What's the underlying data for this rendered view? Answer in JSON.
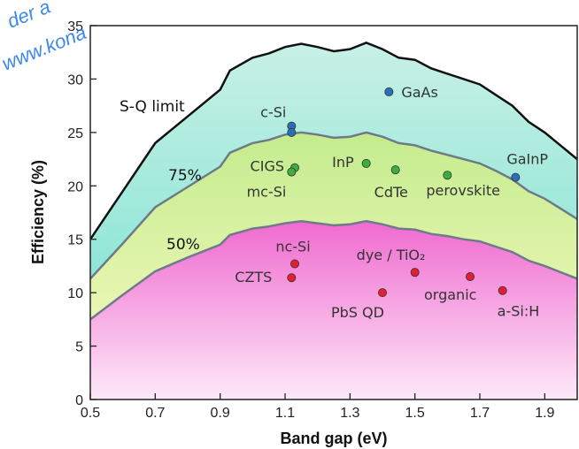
{
  "watermark": {
    "line1": "der a",
    "line2": "www.kona"
  },
  "chart_data": {
    "type": "area",
    "title": "",
    "xlabel": "Band gap (eV)",
    "ylabel": "Efficiency (%)",
    "xlim": [
      0.5,
      2.0
    ],
    "ylim": [
      0,
      35
    ],
    "xticks": [
      "0.5",
      "0.7",
      "0.9",
      "1.1",
      "1.3",
      "1.5",
      "1.7",
      "1.9"
    ],
    "yticks": [
      "0",
      "5",
      "10",
      "15",
      "20",
      "25",
      "30",
      "35"
    ],
    "grid": false,
    "x": [
      0.5,
      0.6,
      0.7,
      0.8,
      0.9,
      0.93,
      1.0,
      1.05,
      1.1,
      1.15,
      1.2,
      1.25,
      1.3,
      1.35,
      1.4,
      1.45,
      1.5,
      1.55,
      1.6,
      1.65,
      1.7,
      1.75,
      1.8,
      1.85,
      1.9,
      2.0
    ],
    "series": [
      {
        "name": "S-Q limit",
        "values": [
          15.0,
          19.5,
          24.0,
          26.5,
          29.0,
          30.8,
          32.0,
          32.4,
          33.0,
          33.3,
          33.0,
          32.6,
          32.8,
          33.4,
          32.8,
          32.0,
          31.8,
          31.0,
          30.5,
          30.0,
          29.5,
          28.5,
          27.5,
          26.0,
          25.0,
          22.5
        ]
      },
      {
        "name": "75%",
        "values": [
          11.3,
          14.6,
          18.0,
          19.9,
          21.8,
          23.1,
          24.0,
          24.3,
          24.8,
          25.0,
          24.8,
          24.5,
          24.6,
          25.0,
          24.6,
          24.0,
          23.8,
          23.3,
          22.9,
          22.5,
          22.1,
          21.4,
          20.6,
          19.5,
          18.8,
          16.9
        ]
      },
      {
        "name": "50%",
        "values": [
          7.5,
          9.8,
          12.0,
          13.3,
          14.5,
          15.4,
          16.0,
          16.2,
          16.5,
          16.7,
          16.5,
          16.3,
          16.4,
          16.7,
          16.4,
          16.0,
          15.9,
          15.5,
          15.3,
          15.0,
          14.8,
          14.3,
          13.8,
          13.0,
          12.5,
          11.3
        ]
      }
    ],
    "points": [
      {
        "label": "GaAs",
        "x": 1.42,
        "y": 28.8,
        "color": "#2a6fb8"
      },
      {
        "label": "c-Si",
        "x": 1.12,
        "y": 25.6,
        "color": "#2a6fb8"
      },
      {
        "label": "",
        "x": 1.12,
        "y": 25.0,
        "color": "#2a6fb8"
      },
      {
        "label": "GaInP",
        "x": 1.81,
        "y": 20.8,
        "color": "#2a6fb8"
      },
      {
        "label": "CIGS",
        "x": 1.13,
        "y": 21.7,
        "color": "#3fae3f"
      },
      {
        "label": "mc-Si",
        "x": 1.12,
        "y": 21.3,
        "color": "#3fae3f"
      },
      {
        "label": "InP",
        "x": 1.35,
        "y": 22.1,
        "color": "#3fae3f"
      },
      {
        "label": "CdTe",
        "x": 1.44,
        "y": 21.5,
        "color": "#3fae3f"
      },
      {
        "label": "perovskite",
        "x": 1.6,
        "y": 21.0,
        "color": "#3fae3f"
      },
      {
        "label": "nc-Si",
        "x": 1.13,
        "y": 12.7,
        "color": "#e02030"
      },
      {
        "label": "CZTS",
        "x": 1.12,
        "y": 11.4,
        "color": "#e02030"
      },
      {
        "label": "dye / TiO₂",
        "x": 1.5,
        "y": 11.9,
        "color": "#e02030"
      },
      {
        "label": "organic",
        "x": 1.67,
        "y": 11.5,
        "color": "#e02030"
      },
      {
        "label": "PbS QD",
        "x": 1.4,
        "y": 10.0,
        "color": "#e02030"
      },
      {
        "label": "a-Si:H",
        "x": 1.77,
        "y": 10.2,
        "color": "#e02030"
      }
    ],
    "region_labels": [
      "S-Q limit",
      "75%",
      "50%"
    ],
    "colors": {
      "sq_band_top": "#c8f0e6",
      "sq_band_bottom": "#8ee6d6",
      "mid_band_top": "#c4ec8e",
      "mid_band_bottom": "#eaf6b4",
      "low_band_top": "#f06ad0",
      "low_band_bottom": "#fde9f8",
      "sq_line": "#111111",
      "efficiency_lines": "#6e7a8a"
    }
  }
}
